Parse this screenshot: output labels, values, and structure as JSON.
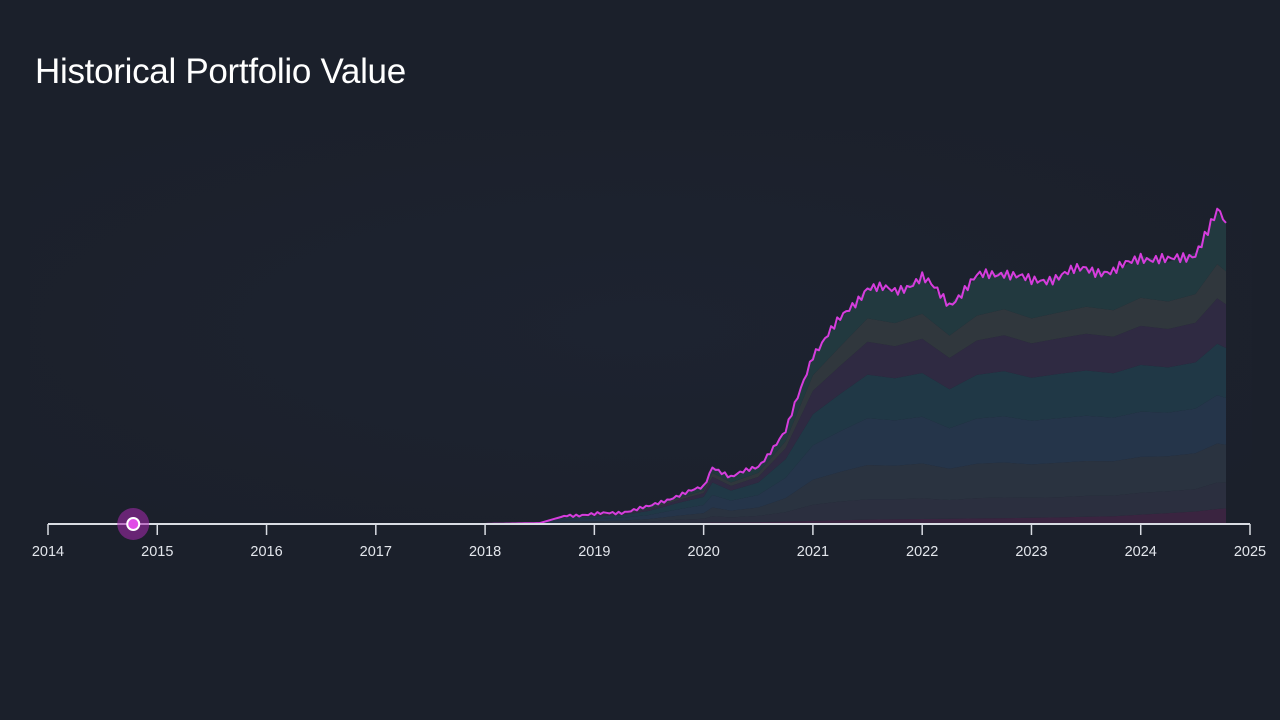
{
  "chart_data": {
    "type": "area",
    "title": "Historical Portfolio Value",
    "xlabel": "",
    "ylabel": "",
    "x_ticks": [
      "2014",
      "2015",
      "2016",
      "2017",
      "2018",
      "2019",
      "2020",
      "2021",
      "2022",
      "2023",
      "2024",
      "2025"
    ],
    "xlim": [
      2014,
      2025
    ],
    "ylim": [
      0,
      1
    ],
    "grid": false,
    "legend": "none",
    "stacked": true,
    "y_tick_labels_shown": false,
    "marker": {
      "x": 2014.78,
      "y": 0
    },
    "x": [
      2014.78,
      2018.0,
      2018.5,
      2018.75,
      2019.0,
      2019.25,
      2019.5,
      2019.75,
      2020.0,
      2020.08,
      2020.25,
      2020.5,
      2020.75,
      2021.0,
      2021.25,
      2021.5,
      2021.75,
      2022.0,
      2022.25,
      2022.5,
      2022.75,
      2023.0,
      2023.25,
      2023.5,
      2023.75,
      2024.0,
      2024.25,
      2024.5,
      2024.7,
      2024.78
    ],
    "total": [
      0.0,
      0.0,
      0.003,
      0.028,
      0.031,
      0.038,
      0.055,
      0.09,
      0.118,
      0.185,
      0.15,
      0.185,
      0.295,
      0.545,
      0.655,
      0.76,
      0.745,
      0.79,
      0.705,
      0.79,
      0.81,
      0.775,
      0.795,
      0.82,
      0.805,
      0.86,
      0.84,
      0.87,
      1.0,
      0.965
    ],
    "series": [
      {
        "values": [
          0.0,
          0.0,
          0.0,
          0.001,
          0.001,
          0.001,
          0.002,
          0.003,
          0.004,
          0.005,
          0.005,
          0.006,
          0.008,
          0.01,
          0.012,
          0.014,
          0.015,
          0.016,
          0.017,
          0.018,
          0.019,
          0.02,
          0.021,
          0.023,
          0.025,
          0.03,
          0.035,
          0.04,
          0.048,
          0.05
        ]
      },
      {
        "values": [
          0.0,
          0.0,
          0.0,
          0.002,
          0.003,
          0.004,
          0.006,
          0.01,
          0.013,
          0.02,
          0.016,
          0.02,
          0.03,
          0.052,
          0.06,
          0.065,
          0.064,
          0.066,
          0.06,
          0.065,
          0.066,
          0.064,
          0.065,
          0.067,
          0.066,
          0.07,
          0.07,
          0.072,
          0.085,
          0.082
        ]
      },
      {
        "values": [
          0.0,
          0.0,
          0.001,
          0.005,
          0.005,
          0.006,
          0.008,
          0.013,
          0.018,
          0.028,
          0.022,
          0.027,
          0.045,
          0.08,
          0.095,
          0.11,
          0.108,
          0.112,
          0.1,
          0.11,
          0.112,
          0.107,
          0.11,
          0.112,
          0.11,
          0.115,
          0.112,
          0.115,
          0.125,
          0.122
        ]
      },
      {
        "values": [
          0.0,
          0.0,
          0.001,
          0.007,
          0.008,
          0.009,
          0.013,
          0.02,
          0.026,
          0.04,
          0.032,
          0.04,
          0.065,
          0.11,
          0.13,
          0.15,
          0.145,
          0.15,
          0.13,
          0.145,
          0.148,
          0.14,
          0.143,
          0.145,
          0.14,
          0.145,
          0.14,
          0.143,
          0.155,
          0.15
        ]
      },
      {
        "values": [
          0.0,
          0.0,
          0.001,
          0.006,
          0.007,
          0.009,
          0.013,
          0.02,
          0.026,
          0.04,
          0.032,
          0.04,
          0.06,
          0.1,
          0.12,
          0.14,
          0.135,
          0.14,
          0.125,
          0.14,
          0.145,
          0.138,
          0.142,
          0.145,
          0.142,
          0.15,
          0.145,
          0.148,
          0.165,
          0.16
        ]
      },
      {
        "values": [
          0.0,
          0.0,
          0.0,
          0.003,
          0.003,
          0.004,
          0.006,
          0.009,
          0.012,
          0.018,
          0.015,
          0.018,
          0.035,
          0.075,
          0.09,
          0.105,
          0.103,
          0.11,
          0.1,
          0.11,
          0.115,
          0.11,
          0.114,
          0.118,
          0.117,
          0.125,
          0.123,
          0.127,
          0.145,
          0.14
        ]
      },
      {
        "values": [
          0.0,
          0.0,
          0.0,
          0.002,
          0.002,
          0.002,
          0.003,
          0.006,
          0.008,
          0.013,
          0.011,
          0.013,
          0.022,
          0.05,
          0.062,
          0.075,
          0.074,
          0.08,
          0.072,
          0.08,
          0.083,
          0.08,
          0.083,
          0.086,
          0.085,
          0.09,
          0.088,
          0.092,
          0.11,
          0.106
        ]
      },
      {
        "values": [
          0.0,
          0.0,
          0.0,
          0.002,
          0.002,
          0.003,
          0.004,
          0.009,
          0.011,
          0.021,
          0.017,
          0.021,
          0.03,
          0.068,
          0.086,
          0.101,
          0.101,
          0.116,
          0.101,
          0.122,
          0.122,
          0.116,
          0.117,
          0.124,
          0.12,
          0.135,
          0.127,
          0.133,
          0.167,
          0.155
        ]
      }
    ],
    "colors": {
      "line": "#d63ddd",
      "marker_fill": "#e04ce6",
      "marker_halo": "#a72ab0",
      "axis": "#d9dce3",
      "background": "#1b202b",
      "bands": [
        "#3a2440",
        "#2b2f3f",
        "#2a3340",
        "#25354a",
        "#203846",
        "#2f2a42",
        "#30373d",
        "#22393f"
      ]
    }
  }
}
